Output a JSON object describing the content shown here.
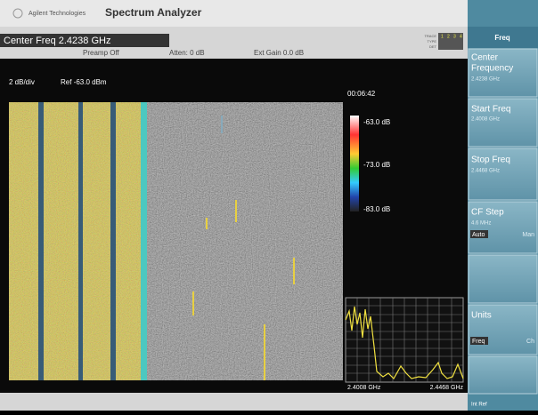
{
  "header": {
    "brand": "Agilent Technologies",
    "app": "Spectrum Analyzer"
  },
  "settings": {
    "center_freq": "Center Freq 2.4238 GHz",
    "preamp": "Preamp Off",
    "atten": "Atten: 0 dB",
    "ext_gain": "Ext Gain 0.0 dB",
    "trace_labels": [
      "TRACE",
      "TYPE",
      "DET"
    ],
    "trace_numbers": [
      "1",
      "2",
      "3",
      "4"
    ]
  },
  "display": {
    "scale": "2 dB/div",
    "ref": "Ref -63.0 dBm",
    "elapsed": "00:06:42",
    "colorbar": [
      "-63.0 dB",
      "-73.0 dB",
      "-83.0 dB"
    ],
    "span_start": "2.4008 GHz",
    "span_stop": "2.4468 GHz"
  },
  "menu": {
    "title": "Freq",
    "keys": [
      {
        "label": "Center Frequency",
        "value": "2.4238 GHz"
      },
      {
        "label": "Start Freq",
        "value": "2.4008 GHz"
      },
      {
        "label": "Stop Freq",
        "value": "2.4468 GHz"
      },
      {
        "label": "CF Step",
        "value": "4.6 MHz",
        "options": [
          "Auto",
          "Man"
        ]
      },
      {
        "label": "Units",
        "options": [
          "Freq",
          "Ch"
        ]
      }
    ],
    "footer": "Int Ref"
  }
}
